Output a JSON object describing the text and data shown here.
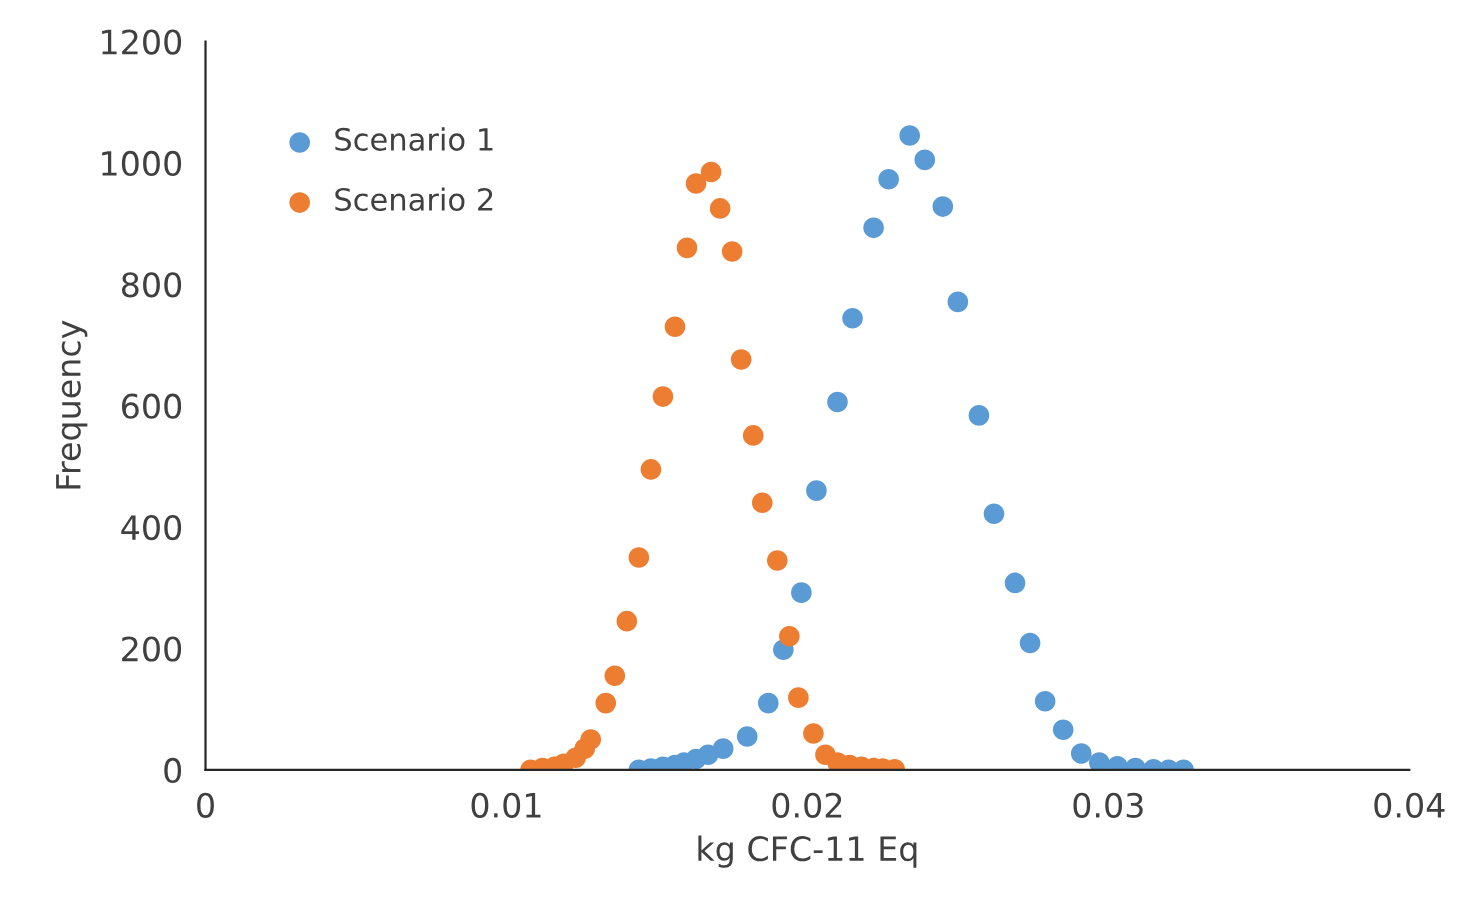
{
  "chart_data": {
    "type": "scatter",
    "xlabel": "kg CFC-11 Eq",
    "ylabel": "Frequency",
    "xlim": [
      0,
      0.04
    ],
    "xticks": [
      0,
      0.01,
      0.02,
      0.03,
      0.04
    ],
    "ylim": [
      0,
      1200
    ],
    "yticks": [
      0,
      200,
      400,
      600,
      800,
      1000,
      1200
    ],
    "grid": false,
    "legend": "top left",
    "marker": "circle",
    "series": [
      {
        "name": "Scenario 1",
        "color": "#5b9bd5",
        "x": [
          0.0144,
          0.0148,
          0.0152,
          0.0156,
          0.0159,
          0.0163,
          0.0167,
          0.0172,
          0.018,
          0.0187,
          0.0192,
          0.0198,
          0.0203,
          0.021,
          0.0215,
          0.0222,
          0.0227,
          0.0234,
          0.0239,
          0.0245,
          0.025,
          0.0257,
          0.0262,
          0.0269,
          0.0274,
          0.0279,
          0.0285,
          0.0291,
          0.0297,
          0.0303,
          0.0309,
          0.0315,
          0.032,
          0.0325
        ],
        "values": [
          0,
          2,
          5,
          8,
          12,
          18,
          25,
          35,
          55,
          110,
          198,
          292,
          460,
          606,
          744,
          893,
          973,
          1045,
          1005,
          928,
          771,
          584,
          422,
          308,
          209,
          113,
          66,
          27,
          12,
          6,
          3,
          1,
          0,
          0
        ]
      },
      {
        "name": "Scenario 2",
        "color": "#ed7d31",
        "x": [
          0.0108,
          0.0112,
          0.0116,
          0.0119,
          0.0123,
          0.0126,
          0.0128,
          0.0133,
          0.0136,
          0.014,
          0.0144,
          0.0148,
          0.0152,
          0.0156,
          0.016,
          0.0163,
          0.0168,
          0.0171,
          0.0175,
          0.0178,
          0.0182,
          0.0185,
          0.019,
          0.0194,
          0.0197,
          0.0202,
          0.0206,
          0.021,
          0.0214,
          0.0218,
          0.0222,
          0.0225,
          0.0229
        ],
        "values": [
          0,
          3,
          5,
          10,
          20,
          35,
          50,
          110,
          155,
          245,
          350,
          495,
          615,
          730,
          860,
          966,
          985,
          925,
          854,
          676,
          551,
          440,
          345,
          220,
          119,
          60,
          25,
          12,
          8,
          5,
          3,
          2,
          1
        ]
      }
    ]
  }
}
